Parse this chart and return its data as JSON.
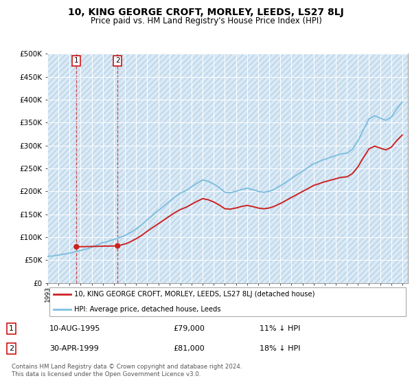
{
  "title": "10, KING GEORGE CROFT, MORLEY, LEEDS, LS27 8LJ",
  "subtitle": "Price paid vs. HM Land Registry's House Price Index (HPI)",
  "legend_line1": "10, KING GEORGE CROFT, MORLEY, LEEDS, LS27 8LJ (detached house)",
  "legend_line2": "HPI: Average price, detached house, Leeds",
  "transaction1_label": "1",
  "transaction1_date": "10-AUG-1995",
  "transaction1_price": "£79,000",
  "transaction1_pct": "11% ↓ HPI",
  "transaction2_label": "2",
  "transaction2_date": "30-APR-1999",
  "transaction2_price": "£81,000",
  "transaction2_pct": "18% ↓ HPI",
  "footer": "Contains HM Land Registry data © Crown copyright and database right 2024.\nThis data is licensed under the Open Government Licence v3.0.",
  "hpi_color": "#7fbfdf",
  "price_color": "#cc2222",
  "marker_color": "#cc2222",
  "vline_color": "#cc2222",
  "bg_face_color": "#daeaf5",
  "bg_hatch_color": "#b8d0e8",
  "ylim": [
    0,
    500000
  ],
  "yticks": [
    0,
    50000,
    100000,
    150000,
    200000,
    250000,
    300000,
    350000,
    400000,
    450000,
    500000
  ],
  "hpi_years": [
    1993.0,
    1993.5,
    1994.0,
    1994.5,
    1995.0,
    1995.5,
    1996.0,
    1996.5,
    1997.0,
    1997.5,
    1998.0,
    1998.5,
    1999.0,
    1999.5,
    2000.0,
    2000.5,
    2001.0,
    2001.5,
    2002.0,
    2002.5,
    2003.0,
    2003.5,
    2004.0,
    2004.5,
    2005.0,
    2005.5,
    2006.0,
    2006.5,
    2007.0,
    2007.5,
    2008.0,
    2008.5,
    2009.0,
    2009.5,
    2010.0,
    2010.5,
    2011.0,
    2011.5,
    2012.0,
    2012.5,
    2013.0,
    2013.5,
    2014.0,
    2014.5,
    2015.0,
    2015.5,
    2016.0,
    2016.5,
    2017.0,
    2017.5,
    2018.0,
    2018.5,
    2019.0,
    2019.5,
    2020.0,
    2020.5,
    2021.0,
    2021.5,
    2022.0,
    2022.5,
    2023.0,
    2023.5,
    2024.0,
    2024.5,
    2025.0
  ],
  "hpi_values": [
    58000,
    59000,
    61000,
    63000,
    65000,
    68000,
    71000,
    74000,
    78000,
    83000,
    88000,
    91000,
    95000,
    99000,
    104000,
    110000,
    118000,
    127000,
    138000,
    148000,
    158000,
    168000,
    178000,
    188000,
    196000,
    202000,
    210000,
    218000,
    225000,
    222000,
    216000,
    208000,
    198000,
    197000,
    200000,
    204000,
    207000,
    204000,
    200000,
    198000,
    200000,
    205000,
    212000,
    220000,
    228000,
    236000,
    244000,
    252000,
    260000,
    265000,
    270000,
    274000,
    278000,
    282000,
    283000,
    292000,
    310000,
    335000,
    358000,
    365000,
    360000,
    355000,
    362000,
    380000,
    395000
  ],
  "price_years": [
    1995.62,
    1999.33
  ],
  "price_values": [
    79000,
    81000
  ],
  "transaction1_year": 1995.62,
  "transaction1_val": 79000,
  "transaction2_year": 1999.33,
  "transaction2_val": 81000,
  "xlim_left": 1993.0,
  "xlim_right": 2025.5
}
